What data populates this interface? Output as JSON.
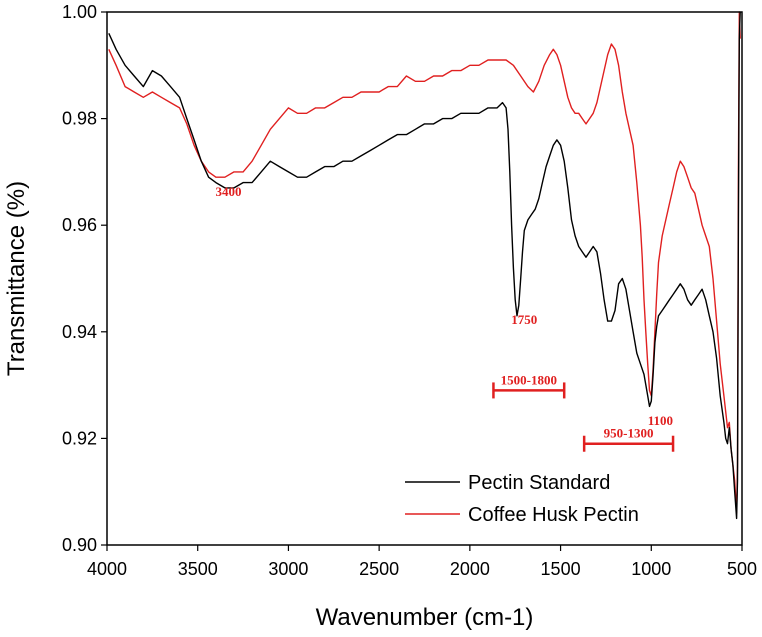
{
  "chart_data": {
    "type": "line",
    "title": "",
    "xlabel": "Wavenumber (cm-1)",
    "ylabel": "Transmittance (%)",
    "xlim": [
      4000,
      500
    ],
    "ylim": [
      0.9,
      1.0
    ],
    "xticks": [
      4000,
      3500,
      3000,
      2500,
      2000,
      1500,
      1000,
      500
    ],
    "xtick_labels": [
      "4000",
      "3500",
      "3000",
      "2500",
      "2000",
      "1500",
      "1000",
      "500"
    ],
    "yticks": [
      0.9,
      0.92,
      0.94,
      0.96,
      0.98,
      1.0
    ],
    "ytick_labels": [
      "0.90",
      "0.92",
      "0.94",
      "0.96",
      "0.98",
      "1.00"
    ],
    "legend_position": "bottom-right",
    "series": [
      {
        "name": "Pectin Standard",
        "color": "#000000",
        "points": [
          [
            3990,
            0.996
          ],
          [
            3950,
            0.993
          ],
          [
            3900,
            0.99
          ],
          [
            3850,
            0.988
          ],
          [
            3800,
            0.986
          ],
          [
            3750,
            0.989
          ],
          [
            3700,
            0.988
          ],
          [
            3650,
            0.986
          ],
          [
            3600,
            0.984
          ],
          [
            3560,
            0.98
          ],
          [
            3520,
            0.976
          ],
          [
            3480,
            0.972
          ],
          [
            3440,
            0.969
          ],
          [
            3400,
            0.968
          ],
          [
            3350,
            0.967
          ],
          [
            3300,
            0.967
          ],
          [
            3250,
            0.968
          ],
          [
            3200,
            0.968
          ],
          [
            3150,
            0.97
          ],
          [
            3100,
            0.972
          ],
          [
            3050,
            0.971
          ],
          [
            3000,
            0.97
          ],
          [
            2950,
            0.969
          ],
          [
            2900,
            0.969
          ],
          [
            2850,
            0.97
          ],
          [
            2800,
            0.971
          ],
          [
            2750,
            0.971
          ],
          [
            2700,
            0.972
          ],
          [
            2650,
            0.972
          ],
          [
            2600,
            0.973
          ],
          [
            2550,
            0.974
          ],
          [
            2500,
            0.975
          ],
          [
            2450,
            0.976
          ],
          [
            2400,
            0.977
          ],
          [
            2350,
            0.977
          ],
          [
            2300,
            0.978
          ],
          [
            2250,
            0.979
          ],
          [
            2200,
            0.979
          ],
          [
            2150,
            0.98
          ],
          [
            2100,
            0.98
          ],
          [
            2050,
            0.981
          ],
          [
            2000,
            0.981
          ],
          [
            1950,
            0.981
          ],
          [
            1900,
            0.982
          ],
          [
            1850,
            0.982
          ],
          [
            1820,
            0.983
          ],
          [
            1800,
            0.982
          ],
          [
            1790,
            0.978
          ],
          [
            1780,
            0.97
          ],
          [
            1770,
            0.96
          ],
          [
            1760,
            0.952
          ],
          [
            1750,
            0.946
          ],
          [
            1740,
            0.943
          ],
          [
            1730,
            0.945
          ],
          [
            1720,
            0.95
          ],
          [
            1710,
            0.955
          ],
          [
            1700,
            0.959
          ],
          [
            1680,
            0.961
          ],
          [
            1660,
            0.962
          ],
          [
            1640,
            0.963
          ],
          [
            1620,
            0.965
          ],
          [
            1600,
            0.968
          ],
          [
            1580,
            0.971
          ],
          [
            1560,
            0.973
          ],
          [
            1540,
            0.975
          ],
          [
            1520,
            0.976
          ],
          [
            1500,
            0.975
          ],
          [
            1480,
            0.972
          ],
          [
            1460,
            0.967
          ],
          [
            1440,
            0.961
          ],
          [
            1420,
            0.958
          ],
          [
            1400,
            0.956
          ],
          [
            1380,
            0.955
          ],
          [
            1360,
            0.954
          ],
          [
            1340,
            0.955
          ],
          [
            1320,
            0.956
          ],
          [
            1300,
            0.955
          ],
          [
            1280,
            0.951
          ],
          [
            1260,
            0.946
          ],
          [
            1240,
            0.942
          ],
          [
            1220,
            0.942
          ],
          [
            1200,
            0.944
          ],
          [
            1180,
            0.949
          ],
          [
            1160,
            0.95
          ],
          [
            1140,
            0.948
          ],
          [
            1120,
            0.944
          ],
          [
            1100,
            0.94
          ],
          [
            1080,
            0.936
          ],
          [
            1060,
            0.934
          ],
          [
            1040,
            0.932
          ],
          [
            1020,
            0.928
          ],
          [
            1010,
            0.926
          ],
          [
            1000,
            0.927
          ],
          [
            990,
            0.932
          ],
          [
            980,
            0.938
          ],
          [
            970,
            0.941
          ],
          [
            960,
            0.943
          ],
          [
            940,
            0.944
          ],
          [
            920,
            0.945
          ],
          [
            900,
            0.946
          ],
          [
            880,
            0.947
          ],
          [
            860,
            0.948
          ],
          [
            840,
            0.949
          ],
          [
            820,
            0.948
          ],
          [
            800,
            0.946
          ],
          [
            780,
            0.945
          ],
          [
            760,
            0.946
          ],
          [
            740,
            0.947
          ],
          [
            720,
            0.948
          ],
          [
            700,
            0.946
          ],
          [
            680,
            0.943
          ],
          [
            660,
            0.94
          ],
          [
            640,
            0.935
          ],
          [
            620,
            0.928
          ],
          [
            600,
            0.923
          ],
          [
            590,
            0.92
          ],
          [
            580,
            0.919
          ],
          [
            570,
            0.922
          ],
          [
            560,
            0.918
          ],
          [
            550,
            0.915
          ],
          [
            540,
            0.91
          ],
          [
            530,
            0.905
          ],
          [
            525,
            0.912
          ],
          [
            520,
            0.96
          ],
          [
            515,
            0.995
          ],
          [
            510,
            1.0
          ]
        ]
      },
      {
        "name": "Coffee Husk Pectin",
        "color": "#e02020",
        "points": [
          [
            3990,
            0.993
          ],
          [
            3950,
            0.99
          ],
          [
            3900,
            0.986
          ],
          [
            3850,
            0.985
          ],
          [
            3800,
            0.984
          ],
          [
            3750,
            0.985
          ],
          [
            3700,
            0.984
          ],
          [
            3650,
            0.983
          ],
          [
            3600,
            0.982
          ],
          [
            3560,
            0.979
          ],
          [
            3520,
            0.975
          ],
          [
            3480,
            0.972
          ],
          [
            3440,
            0.97
          ],
          [
            3400,
            0.969
          ],
          [
            3350,
            0.969
          ],
          [
            3300,
            0.97
          ],
          [
            3250,
            0.97
          ],
          [
            3200,
            0.972
          ],
          [
            3150,
            0.975
          ],
          [
            3100,
            0.978
          ],
          [
            3050,
            0.98
          ],
          [
            3000,
            0.982
          ],
          [
            2950,
            0.981
          ],
          [
            2900,
            0.981
          ],
          [
            2850,
            0.982
          ],
          [
            2800,
            0.982
          ],
          [
            2750,
            0.983
          ],
          [
            2700,
            0.984
          ],
          [
            2650,
            0.984
          ],
          [
            2600,
            0.985
          ],
          [
            2550,
            0.985
          ],
          [
            2500,
            0.985
          ],
          [
            2450,
            0.986
          ],
          [
            2400,
            0.986
          ],
          [
            2350,
            0.988
          ],
          [
            2300,
            0.987
          ],
          [
            2250,
            0.987
          ],
          [
            2200,
            0.988
          ],
          [
            2150,
            0.988
          ],
          [
            2100,
            0.989
          ],
          [
            2050,
            0.989
          ],
          [
            2000,
            0.99
          ],
          [
            1950,
            0.99
          ],
          [
            1900,
            0.991
          ],
          [
            1850,
            0.991
          ],
          [
            1800,
            0.991
          ],
          [
            1760,
            0.99
          ],
          [
            1720,
            0.988
          ],
          [
            1680,
            0.986
          ],
          [
            1650,
            0.985
          ],
          [
            1620,
            0.987
          ],
          [
            1590,
            0.99
          ],
          [
            1560,
            0.992
          ],
          [
            1540,
            0.993
          ],
          [
            1520,
            0.992
          ],
          [
            1500,
            0.99
          ],
          [
            1480,
            0.987
          ],
          [
            1460,
            0.984
          ],
          [
            1440,
            0.982
          ],
          [
            1420,
            0.981
          ],
          [
            1400,
            0.981
          ],
          [
            1380,
            0.98
          ],
          [
            1360,
            0.979
          ],
          [
            1340,
            0.98
          ],
          [
            1320,
            0.981
          ],
          [
            1300,
            0.983
          ],
          [
            1280,
            0.986
          ],
          [
            1260,
            0.989
          ],
          [
            1240,
            0.992
          ],
          [
            1220,
            0.994
          ],
          [
            1200,
            0.993
          ],
          [
            1180,
            0.99
          ],
          [
            1160,
            0.985
          ],
          [
            1140,
            0.981
          ],
          [
            1120,
            0.978
          ],
          [
            1100,
            0.975
          ],
          [
            1080,
            0.968
          ],
          [
            1060,
            0.96
          ],
          [
            1050,
            0.954
          ],
          [
            1040,
            0.946
          ],
          [
            1030,
            0.94
          ],
          [
            1020,
            0.934
          ],
          [
            1010,
            0.929
          ],
          [
            1000,
            0.928
          ],
          [
            990,
            0.933
          ],
          [
            980,
            0.94
          ],
          [
            970,
            0.947
          ],
          [
            960,
            0.953
          ],
          [
            940,
            0.958
          ],
          [
            920,
            0.961
          ],
          [
            900,
            0.964
          ],
          [
            880,
            0.967
          ],
          [
            860,
            0.97
          ],
          [
            840,
            0.972
          ],
          [
            820,
            0.971
          ],
          [
            800,
            0.969
          ],
          [
            780,
            0.967
          ],
          [
            760,
            0.966
          ],
          [
            740,
            0.963
          ],
          [
            720,
            0.96
          ],
          [
            700,
            0.958
          ],
          [
            680,
            0.956
          ],
          [
            660,
            0.95
          ],
          [
            640,
            0.942
          ],
          [
            620,
            0.934
          ],
          [
            600,
            0.928
          ],
          [
            590,
            0.925
          ],
          [
            580,
            0.922
          ],
          [
            570,
            0.923
          ],
          [
            560,
            0.918
          ],
          [
            550,
            0.915
          ],
          [
            540,
            0.912
          ],
          [
            530,
            0.906
          ],
          [
            525,
            0.915
          ],
          [
            520,
            0.97
          ],
          [
            515,
            1.0
          ],
          [
            510,
            0.995
          ]
        ]
      }
    ],
    "annotations": [
      {
        "id": "peak-3400",
        "text": "3400",
        "x": 3330,
        "y": 0.9655
      },
      {
        "id": "peak-1750",
        "text": "1750",
        "x": 1700,
        "y": 0.9415
      },
      {
        "id": "peak-1100",
        "text": "1100",
        "x": 950,
        "y": 0.9225
      }
    ],
    "ranges": [
      {
        "id": "range-1500-1800",
        "text": "1500-1800",
        "x_from": 1870,
        "x_to": 1480,
        "y": 0.929
      },
      {
        "id": "range-950-1300",
        "text": "950-1300",
        "x_from": 1370,
        "x_to": 880,
        "y": 0.919
      }
    ]
  }
}
